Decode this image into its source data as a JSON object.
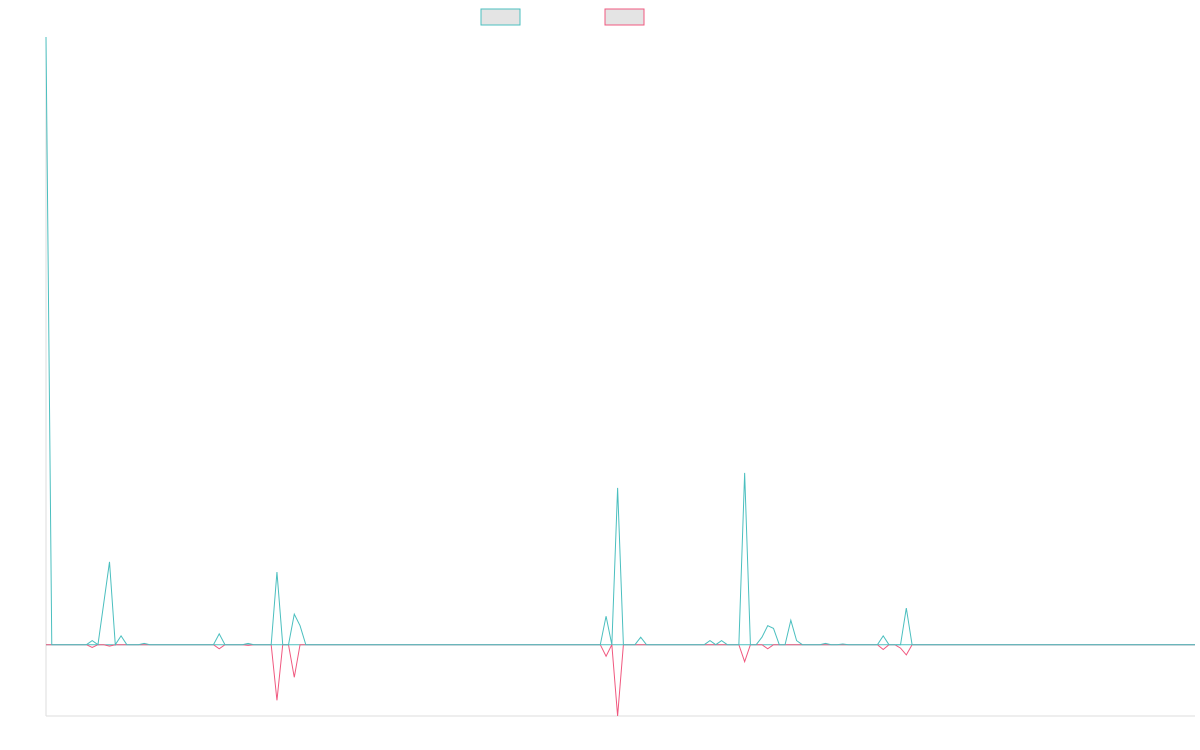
{
  "chart_data": {
    "type": "line",
    "title": "",
    "xlabel": "",
    "ylabel": "",
    "x_count": 200,
    "ylim": [
      -0.105,
      0.895
    ],
    "grid": false,
    "legend_position": "top-center",
    "colors": {
      "series_a": "#4bbfbf",
      "series_b": "#f0587f",
      "legend_fill": "#e4e4e4",
      "axis": "#dddddd"
    },
    "series": [
      {
        "color": "#4bbfbf",
        "points": [
          [
            0,
            0.895
          ],
          [
            1,
            0.0
          ],
          [
            7,
            0.0
          ],
          [
            8,
            0.006
          ],
          [
            9,
            0.0
          ],
          [
            11,
            0.122
          ],
          [
            12,
            0.0
          ],
          [
            13,
            0.013
          ],
          [
            14,
            0.0
          ],
          [
            16,
            0.0
          ],
          [
            17,
            0.002
          ],
          [
            18,
            0.0
          ],
          [
            29,
            0.0
          ],
          [
            30,
            0.016
          ],
          [
            31,
            0.0
          ],
          [
            34,
            0.0
          ],
          [
            35,
            0.002
          ],
          [
            36,
            0.0
          ],
          [
            39,
            0.0
          ],
          [
            40,
            0.107
          ],
          [
            41,
            0.0
          ],
          [
            42,
            0.0
          ],
          [
            43,
            0.045
          ],
          [
            44,
            0.028
          ],
          [
            45,
            0.0
          ],
          [
            96,
            0.0
          ],
          [
            97,
            0.042
          ],
          [
            98,
            0.0
          ],
          [
            99,
            0.231
          ],
          [
            100,
            0.0
          ],
          [
            102,
            0.0
          ],
          [
            103,
            0.011
          ],
          [
            104,
            0.0
          ],
          [
            114,
            0.0
          ],
          [
            115,
            0.006
          ],
          [
            116,
            0.0
          ],
          [
            117,
            0.006
          ],
          [
            118,
            0.0
          ],
          [
            120,
            0.0
          ],
          [
            121,
            0.253
          ],
          [
            122,
            0.0
          ],
          [
            123,
            0.0
          ],
          [
            124,
            0.011
          ],
          [
            125,
            0.028
          ],
          [
            126,
            0.024
          ],
          [
            127,
            0.0
          ],
          [
            128,
            0.0
          ],
          [
            129,
            0.036
          ],
          [
            130,
            0.006
          ],
          [
            131,
            0.0
          ],
          [
            134,
            0.0
          ],
          [
            135,
            0.002
          ],
          [
            136,
            0.0
          ],
          [
            137,
            0.0
          ],
          [
            138,
            0.001
          ],
          [
            139,
            0.0
          ],
          [
            144,
            0.0
          ],
          [
            145,
            0.013
          ],
          [
            146,
            0.0
          ],
          [
            148,
            0.0
          ],
          [
            149,
            0.054
          ],
          [
            150,
            0.0
          ],
          [
            199,
            0.0
          ]
        ]
      },
      {
        "color": "#f0587f",
        "points": [
          [
            0,
            0.0
          ],
          [
            7,
            0.0
          ],
          [
            8,
            -0.004
          ],
          [
            9,
            0.0
          ],
          [
            10,
            0.0
          ],
          [
            11,
            -0.002
          ],
          [
            12,
            0.0
          ],
          [
            29,
            0.0
          ],
          [
            30,
            -0.006
          ],
          [
            31,
            0.0
          ],
          [
            34,
            0.0
          ],
          [
            35,
            -0.001
          ],
          [
            36,
            0.0
          ],
          [
            39,
            0.0
          ],
          [
            40,
            -0.082
          ],
          [
            41,
            0.0
          ],
          [
            42,
            0.0
          ],
          [
            43,
            -0.048
          ],
          [
            44,
            0.0
          ],
          [
            96,
            0.0
          ],
          [
            97,
            -0.017
          ],
          [
            98,
            0.0
          ],
          [
            99,
            -0.105
          ],
          [
            100,
            0.0
          ],
          [
            120,
            0.0
          ],
          [
            121,
            -0.025
          ],
          [
            122,
            0.0
          ],
          [
            124,
            0.0
          ],
          [
            125,
            -0.006
          ],
          [
            126,
            0.0
          ],
          [
            144,
            0.0
          ],
          [
            145,
            -0.007
          ],
          [
            146,
            0.0
          ],
          [
            147,
            0.0
          ],
          [
            148,
            -0.005
          ],
          [
            149,
            -0.015
          ],
          [
            150,
            0.0
          ],
          [
            199,
            0.0
          ]
        ]
      }
    ]
  }
}
